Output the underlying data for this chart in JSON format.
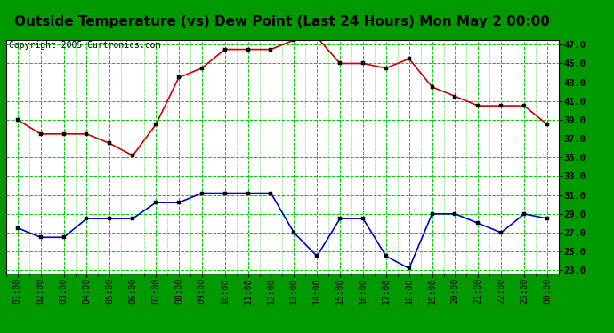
{
  "title": "Outside Temperature (vs) Dew Point (Last 24 Hours) Mon May 2 00:00",
  "copyright": "Copyright 2005 Curtronics.com",
  "x_labels": [
    "01:00",
    "02:00",
    "03:00",
    "04:00",
    "05:00",
    "06:00",
    "07:00",
    "08:00",
    "09:00",
    "10:00",
    "11:00",
    "12:00",
    "13:00",
    "14:00",
    "15:00",
    "16:00",
    "17:00",
    "18:00",
    "19:00",
    "20:00",
    "21:00",
    "22:00",
    "23:00",
    "00:00"
  ],
  "temp_data": [
    39.0,
    37.5,
    37.5,
    37.5,
    36.5,
    35.2,
    38.5,
    43.5,
    44.5,
    46.5,
    46.5,
    46.5,
    47.5,
    47.8,
    45.0,
    45.0,
    44.5,
    45.5,
    42.5,
    41.5,
    40.5,
    40.5,
    40.5,
    38.5
  ],
  "dew_data": [
    27.5,
    26.5,
    26.5,
    28.5,
    28.5,
    28.5,
    30.2,
    30.2,
    31.2,
    31.2,
    31.2,
    31.2,
    27.0,
    24.5,
    28.5,
    28.5,
    24.5,
    23.2,
    29.0,
    29.0,
    28.0,
    27.0,
    29.0,
    28.5
  ],
  "temp_color": "#cc0000",
  "dew_color": "#0000cc",
  "bg_color": "#009900",
  "plot_bg": "#ffffff",
  "grid_color": "#00cc00",
  "ylim_min": 23.0,
  "ylim_max": 47.0,
  "ytick_step": 2.0,
  "title_fontsize": 11,
  "copyright_fontsize": 7
}
